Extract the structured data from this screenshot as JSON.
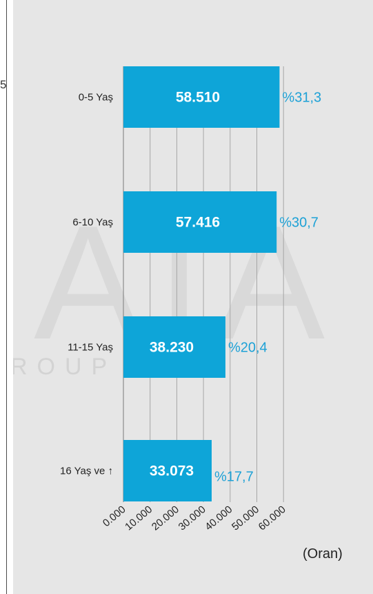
{
  "stray_text": "5",
  "watermark": {
    "big": "ATA",
    "small": "ROUP"
  },
  "colors": {
    "bar": "#0ea5d8",
    "percent": "#1da1d6",
    "panel": "#e6e6e6",
    "grid": "#a6a6a6"
  },
  "chart_data": {
    "type": "bar",
    "orientation": "horizontal",
    "categories": [
      "0-5 Yaş",
      "6-10 Yaş",
      "11-15 Yaş",
      "16 Yaş ve ↑"
    ],
    "values": [
      58510,
      57416,
      38230,
      33073
    ],
    "value_labels": [
      "58.510",
      "57.416",
      "38.230",
      "33.073"
    ],
    "percent_labels": [
      "%31,3",
      "%30,7",
      "%20,4",
      "%17,7"
    ],
    "percent_values": [
      31.3,
      30.7,
      20.4,
      17.7
    ],
    "xlim": [
      0,
      60000
    ],
    "x_ticks": [
      "0.000",
      "10.000",
      "20.000",
      "30.000",
      "40.000",
      "50.000",
      "60.000"
    ],
    "unit_label": "(Oran)",
    "grid": true
  }
}
